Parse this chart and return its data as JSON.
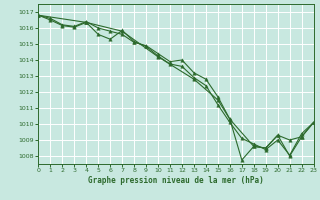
{
  "background_color": "#c8e8e0",
  "grid_color": "#aad4cc",
  "plot_bg": "#c8e8e0",
  "line_color": "#2d6a2d",
  "xlabel": "Graphe pression niveau de la mer (hPa)",
  "xlim": [
    0,
    23
  ],
  "ylim": [
    1007.5,
    1017.5
  ],
  "yticks": [
    1008,
    1009,
    1010,
    1011,
    1012,
    1013,
    1014,
    1015,
    1016,
    1017
  ],
  "xticks": [
    0,
    1,
    2,
    3,
    4,
    5,
    6,
    7,
    8,
    9,
    10,
    11,
    12,
    13,
    14,
    15,
    16,
    17,
    18,
    19,
    20,
    21,
    22,
    23
  ],
  "series1_x": [
    0,
    1,
    2,
    3,
    4,
    5,
    6,
    7,
    8,
    9,
    10,
    11,
    12,
    13,
    14,
    15,
    16,
    17,
    18,
    19,
    20,
    21,
    22,
    23
  ],
  "series1_y": [
    1016.8,
    1016.6,
    1016.2,
    1016.1,
    1016.4,
    1016.0,
    1015.8,
    1015.6,
    1015.1,
    1014.9,
    1014.4,
    1013.9,
    1014.0,
    1013.2,
    1012.8,
    1011.7,
    1010.3,
    1007.75,
    1008.6,
    1008.5,
    1009.3,
    1008.0,
    1009.2,
    1010.1
  ],
  "series2_x": [
    0,
    1,
    2,
    3,
    4,
    5,
    6,
    7,
    8,
    9,
    10,
    11,
    12,
    13,
    14,
    15,
    16,
    17,
    18,
    19,
    20,
    21,
    22,
    23
  ],
  "series2_y": [
    1016.8,
    1016.5,
    1016.15,
    1016.05,
    1016.35,
    1015.6,
    1015.3,
    1015.85,
    1015.15,
    1014.85,
    1014.25,
    1013.75,
    1013.6,
    1012.9,
    1012.4,
    1011.2,
    1010.1,
    1009.1,
    1008.75,
    1008.4,
    1009.0,
    1008.05,
    1009.4,
    1010.1
  ],
  "series3_x": [
    0,
    4,
    7,
    10,
    13,
    15,
    16,
    18,
    19,
    20,
    21,
    22,
    23
  ],
  "series3_y": [
    1016.8,
    1016.35,
    1015.8,
    1014.2,
    1012.8,
    1011.5,
    1010.3,
    1008.6,
    1008.5,
    1009.3,
    1009.0,
    1009.2,
    1010.1
  ]
}
